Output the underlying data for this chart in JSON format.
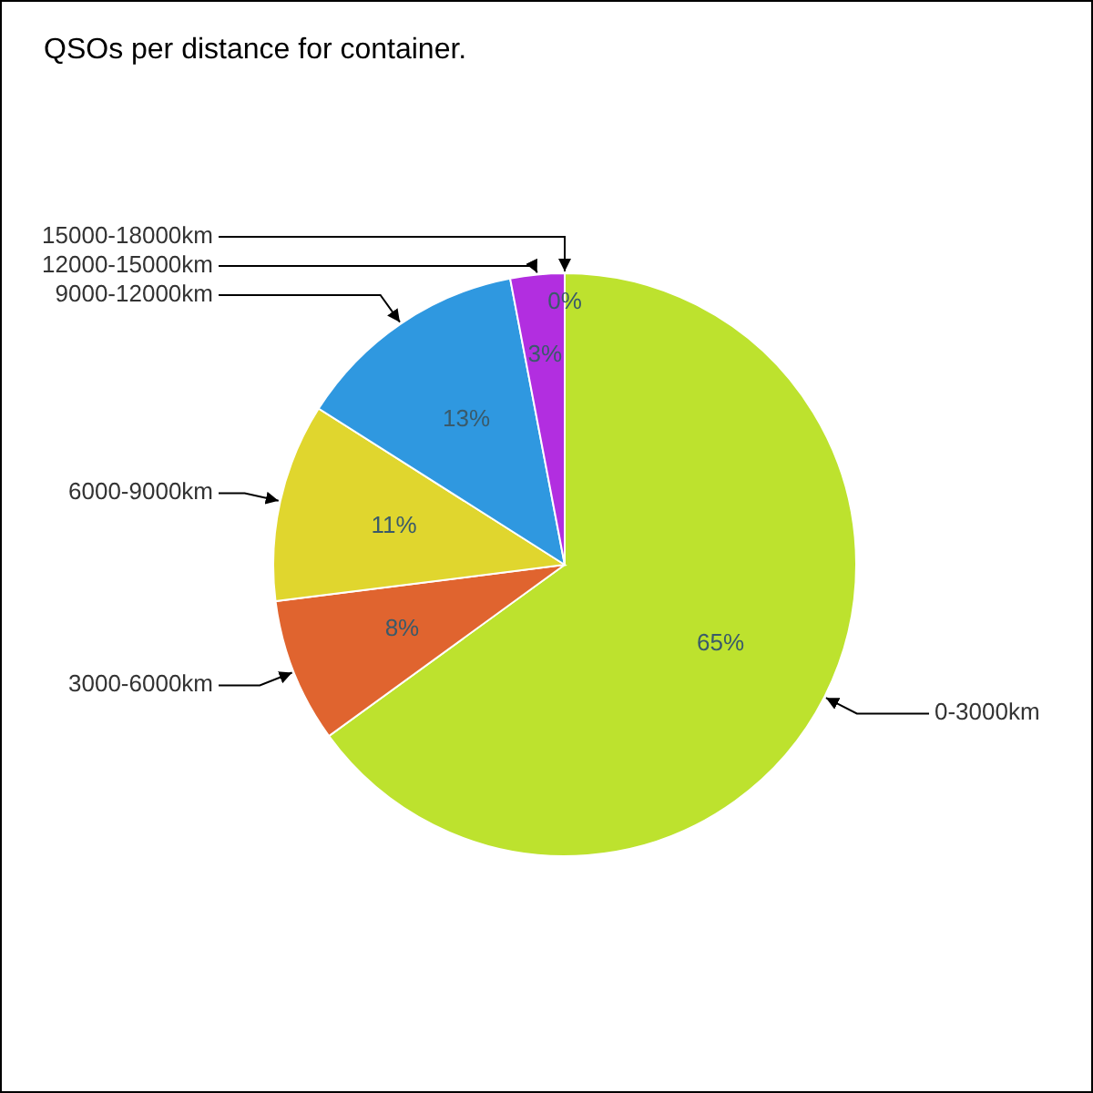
{
  "chart_data": {
    "type": "pie",
    "title": "QSOs per distance for container.",
    "categories": [
      "0-3000km",
      "3000-6000km",
      "6000-9000km",
      "9000-12000km",
      "12000-15000km",
      "15000-18000km"
    ],
    "values": [
      65,
      8,
      11,
      13,
      3,
      0
    ],
    "value_labels": [
      "65%",
      "8%",
      "11%",
      "13%",
      "3%",
      "0%"
    ],
    "colors": [
      "#bde22e",
      "#e0642f",
      "#e0d62e",
      "#2f98e0",
      "#b22ee0",
      "#f0b0c8"
    ]
  }
}
